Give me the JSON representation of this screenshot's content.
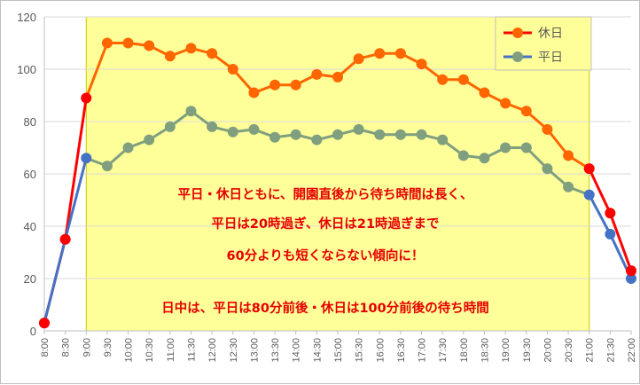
{
  "colors": {
    "holiday_line": "#ff0000",
    "holiday_marker": "#ff6600",
    "weekday_line": "#4472c4",
    "weekday_marker": "#7f9f7f",
    "highlight": "#ffff99",
    "highlight_edge": "#c9c900",
    "grid": "#d9d9d9",
    "annotation": "#e60000"
  },
  "legend": {
    "holiday_label": "休日",
    "weekday_label": "平日"
  },
  "annotations": {
    "line1": "平日・休日ともに、開園直後から待ち時間は長く、",
    "line2": "平日は20時過ぎ、休日は21時過ぎまで",
    "line3": "60分よりも短くならない傾向に！",
    "line4": "日中は、平日は80分前後・休日は100分前後の待ち時間"
  },
  "chart_data": {
    "type": "line",
    "categories": [
      "8:00",
      "8:30",
      "9:00",
      "9:30",
      "10:00",
      "10:30",
      "11:00",
      "11:30",
      "12:00",
      "12:30",
      "13:00",
      "13:30",
      "14:00",
      "14:30",
      "15:00",
      "15:30",
      "16:00",
      "16:30",
      "17:00",
      "17:30",
      "18:00",
      "18:30",
      "19:00",
      "19:30",
      "20:00",
      "20:30",
      "21:00",
      "21:30",
      "22:00"
    ],
    "ylim": [
      0,
      120
    ],
    "yticks": [
      0,
      20,
      40,
      60,
      80,
      100,
      120
    ],
    "grid": "horizontal",
    "legend_position": "top-right",
    "highlight_range": [
      "9:00",
      "21:00"
    ],
    "series": [
      {
        "name": "休日",
        "values": [
          3,
          35,
          89,
          110,
          110,
          109,
          105,
          108,
          106,
          100,
          91,
          94,
          94,
          98,
          97,
          104,
          106,
          106,
          102,
          96,
          96,
          91,
          87,
          84,
          77,
          67,
          62,
          45,
          23
        ]
      },
      {
        "name": "平日",
        "values": [
          3,
          35,
          66,
          63,
          70,
          73,
          78,
          84,
          78,
          76,
          77,
          74,
          75,
          73,
          75,
          77,
          75,
          75,
          75,
          73,
          67,
          66,
          70,
          70,
          62,
          55,
          52,
          37,
          20
        ]
      }
    ]
  }
}
